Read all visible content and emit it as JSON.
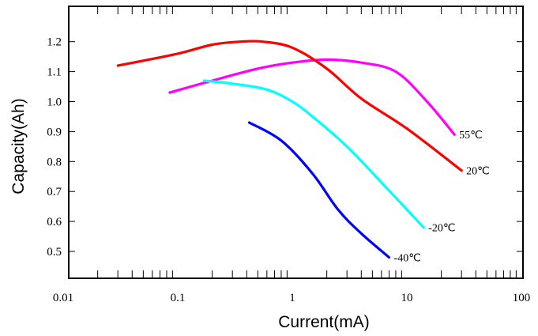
{
  "chart_data": {
    "type": "line",
    "xlabel": "Current(mA)",
    "ylabel": "Capacity(Ah)",
    "x_scale": "log",
    "xlim": [
      0.01,
      100
    ],
    "ylim": [
      0.4,
      1.3
    ],
    "grid": true,
    "x_ticks": [
      "0.01",
      "0.1",
      "1",
      "10",
      "100"
    ],
    "y_ticks": [
      "0.5",
      "0.6",
      "0.7",
      "0.8",
      "0.9",
      "1.0",
      "1.1",
      "1.2"
    ],
    "series": [
      {
        "name": "55℃",
        "color": "#ff00ff",
        "x": [
          0.085,
          0.2,
          0.5,
          1,
          2,
          4,
          8,
          15,
          26
        ],
        "y": [
          1.03,
          1.07,
          1.11,
          1.13,
          1.14,
          1.13,
          1.1,
          1.0,
          0.89
        ]
      },
      {
        "name": "20℃",
        "color": "#ff0000",
        "x": [
          0.03,
          0.1,
          0.2,
          0.35,
          0.55,
          1,
          2,
          4,
          10,
          30
        ],
        "y": [
          1.12,
          1.16,
          1.19,
          1.2,
          1.2,
          1.18,
          1.11,
          1.01,
          0.91,
          0.77
        ]
      },
      {
        "name": "-20℃",
        "color": "#00ffff",
        "x": [
          0.17,
          0.3,
          0.6,
          1,
          1.5,
          3,
          6,
          14
        ],
        "y": [
          1.07,
          1.06,
          1.04,
          1.0,
          0.95,
          0.85,
          0.73,
          0.58
        ]
      },
      {
        "name": "-40℃",
        "color": "#0000ff",
        "x": [
          0.42,
          0.8,
          1.5,
          2.5,
          4,
          7
        ],
        "y": [
          0.93,
          0.87,
          0.76,
          0.64,
          0.56,
          0.48
        ]
      }
    ]
  }
}
